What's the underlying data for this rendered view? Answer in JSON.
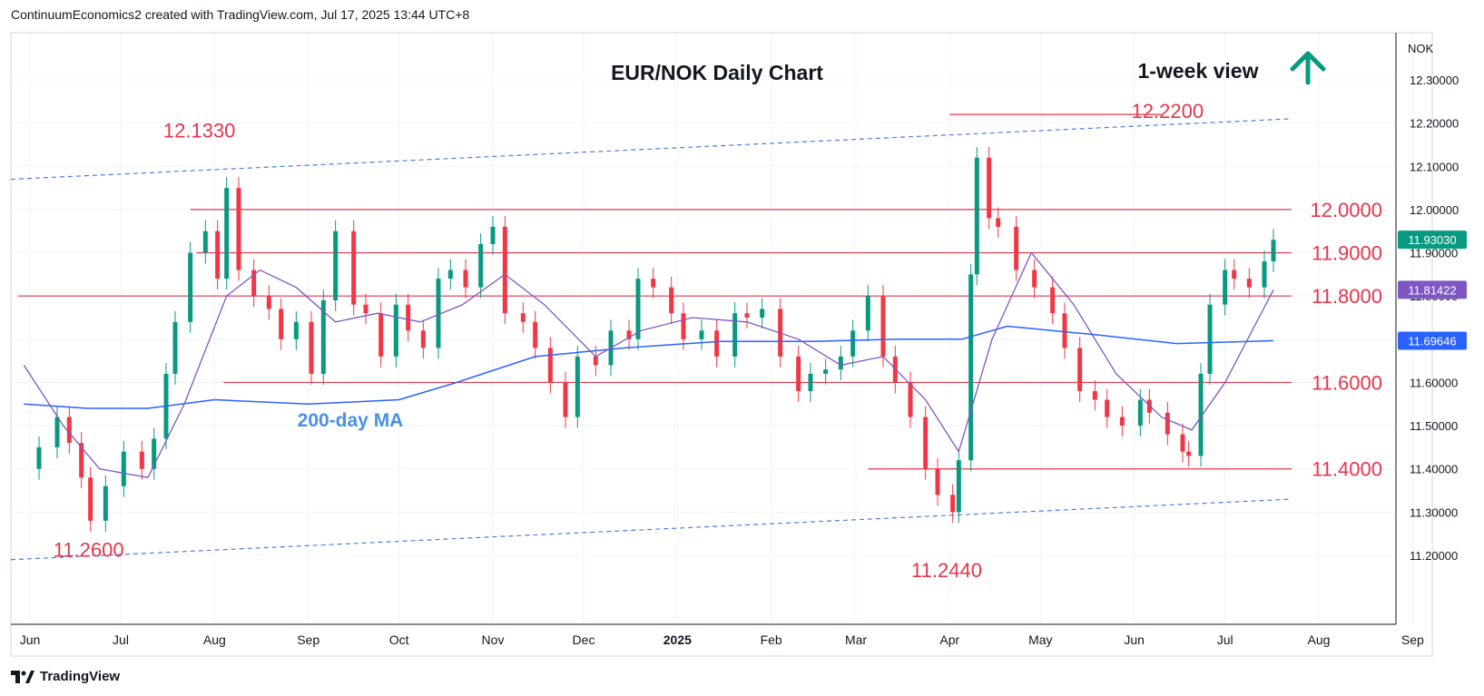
{
  "header": {
    "attribution": "ContinuumEconomics2 created with TradingView.com, Jul 17, 2025 13:44 UTC+8"
  },
  "footer": {
    "brand": "TradingView"
  },
  "colors": {
    "resistance": "#e5364b",
    "channel": "#4a7fe0",
    "ma200": "#2962ff",
    "ma_short": "#7e57c2",
    "up_candle": "#089981",
    "down_candle": "#f23645",
    "arrow": "#089981"
  },
  "chart_data": {
    "type": "candlestick",
    "title": "EUR/NOK Daily Chart",
    "currency": "NOK",
    "view": "1-week view",
    "view_direction": "up",
    "ylim": [
      11.11,
      12.38
    ],
    "y_ticks": [
      "12.30000",
      "12.20000",
      "12.10000",
      "12.00000",
      "11.90000",
      "11.80000",
      "11.70000",
      "11.60000",
      "11.50000",
      "11.40000",
      "11.30000",
      "11.20000"
    ],
    "x_ticks": [
      "Jun",
      "Jul",
      "Aug",
      "Sep",
      "Oct",
      "Nov",
      "Dec",
      "2025",
      "Feb",
      "Mar",
      "Apr",
      "May",
      "Jun",
      "Jul",
      "Aug",
      "Sep"
    ],
    "price_badges": [
      {
        "label": "11.93030",
        "value": 11.9303,
        "color": "#089981"
      },
      {
        "label": "11.81422",
        "value": 11.81422,
        "color": "#7e57c2"
      },
      {
        "label": "11.69646",
        "value": 11.69646,
        "color": "#2962ff"
      }
    ],
    "horizontal_levels": [
      {
        "label": "12.0000",
        "value": 12.0
      },
      {
        "label": "11.9000",
        "value": 11.9
      },
      {
        "label": "11.8000",
        "value": 11.8
      },
      {
        "label": "11.6000",
        "value": 11.6
      },
      {
        "label": "11.4000",
        "value": 11.4
      }
    ],
    "peak_annotations": [
      {
        "label": "12.1330",
        "value": 12.133,
        "date": "2024-08-05"
      },
      {
        "label": "12.2200",
        "value": 12.22,
        "date": "2025-04-10"
      },
      {
        "label": "11.2600",
        "value": 11.26,
        "date": "2024-06-21"
      },
      {
        "label": "11.2440",
        "value": 11.244,
        "date": "2025-04-03"
      }
    ],
    "ma_label": "200-day MA",
    "close_series": [
      [
        "2024-05-30",
        11.4
      ],
      [
        "2024-06-04",
        11.45
      ],
      [
        "2024-06-10",
        11.52
      ],
      [
        "2024-06-14",
        11.46
      ],
      [
        "2024-06-18",
        11.38
      ],
      [
        "2024-06-21",
        11.28
      ],
      [
        "2024-06-26",
        11.36
      ],
      [
        "2024-07-02",
        11.44
      ],
      [
        "2024-07-08",
        11.4
      ],
      [
        "2024-07-12",
        11.47
      ],
      [
        "2024-07-16",
        11.62
      ],
      [
        "2024-07-19",
        11.74
      ],
      [
        "2024-07-24",
        11.9
      ],
      [
        "2024-07-29",
        11.95
      ],
      [
        "2024-08-02",
        11.84
      ],
      [
        "2024-08-05",
        12.05
      ],
      [
        "2024-08-09",
        11.86
      ],
      [
        "2024-08-14",
        11.8
      ],
      [
        "2024-08-19",
        11.77
      ],
      [
        "2024-08-23",
        11.7
      ],
      [
        "2024-08-28",
        11.74
      ],
      [
        "2024-09-02",
        11.62
      ],
      [
        "2024-09-06",
        11.79
      ],
      [
        "2024-09-10",
        11.95
      ],
      [
        "2024-09-16",
        11.78
      ],
      [
        "2024-09-20",
        11.76
      ],
      [
        "2024-09-25",
        11.66
      ],
      [
        "2024-09-30",
        11.78
      ],
      [
        "2024-10-04",
        11.72
      ],
      [
        "2024-10-09",
        11.68
      ],
      [
        "2024-10-14",
        11.84
      ],
      [
        "2024-10-18",
        11.86
      ],
      [
        "2024-10-23",
        11.82
      ],
      [
        "2024-10-28",
        11.92
      ],
      [
        "2024-11-01",
        11.96
      ],
      [
        "2024-11-05",
        11.76
      ],
      [
        "2024-11-11",
        11.74
      ],
      [
        "2024-11-15",
        11.68
      ],
      [
        "2024-11-20",
        11.6
      ],
      [
        "2024-11-25",
        11.52
      ],
      [
        "2024-11-29",
        11.66
      ],
      [
        "2024-12-05",
        11.64
      ],
      [
        "2024-12-10",
        11.72
      ],
      [
        "2024-12-16",
        11.7
      ],
      [
        "2024-12-19",
        11.84
      ],
      [
        "2024-12-24",
        11.82
      ],
      [
        "2024-12-30",
        11.76
      ],
      [
        "2025-01-03",
        11.7
      ],
      [
        "2025-01-09",
        11.72
      ],
      [
        "2025-01-14",
        11.66
      ],
      [
        "2025-01-20",
        11.76
      ],
      [
        "2025-01-24",
        11.75
      ],
      [
        "2025-01-29",
        11.77
      ],
      [
        "2025-02-04",
        11.66
      ],
      [
        "2025-02-10",
        11.58
      ],
      [
        "2025-02-14",
        11.62
      ],
      [
        "2025-02-19",
        11.63
      ],
      [
        "2025-02-24",
        11.66
      ],
      [
        "2025-02-28",
        11.72
      ],
      [
        "2025-03-05",
        11.8
      ],
      [
        "2025-03-10",
        11.66
      ],
      [
        "2025-03-14",
        11.6
      ],
      [
        "2025-03-19",
        11.52
      ],
      [
        "2025-03-24",
        11.4
      ],
      [
        "2025-03-28",
        11.34
      ],
      [
        "2025-04-02",
        11.3
      ],
      [
        "2025-04-04",
        11.42
      ],
      [
        "2025-04-08",
        11.85
      ],
      [
        "2025-04-10",
        12.12
      ],
      [
        "2025-04-14",
        11.98
      ],
      [
        "2025-04-17",
        11.96
      ],
      [
        "2025-04-23",
        11.86
      ],
      [
        "2025-04-29",
        11.82
      ],
      [
        "2025-05-05",
        11.76
      ],
      [
        "2025-05-09",
        11.68
      ],
      [
        "2025-05-14",
        11.58
      ],
      [
        "2025-05-19",
        11.56
      ],
      [
        "2025-05-23",
        11.52
      ],
      [
        "2025-05-28",
        11.5
      ],
      [
        "2025-06-03",
        11.56
      ],
      [
        "2025-06-06",
        11.53
      ],
      [
        "2025-06-12",
        11.48
      ],
      [
        "2025-06-17",
        11.44
      ],
      [
        "2025-06-19",
        11.43
      ],
      [
        "2025-06-23",
        11.62
      ],
      [
        "2025-06-26",
        11.78
      ],
      [
        "2025-07-01",
        11.86
      ],
      [
        "2025-07-04",
        11.84
      ],
      [
        "2025-07-09",
        11.82
      ],
      [
        "2025-07-14",
        11.88
      ],
      [
        "2025-07-17",
        11.93
      ]
    ],
    "ma200_series": [
      [
        "2024-05-30",
        11.55
      ],
      [
        "2024-06-20",
        11.54
      ],
      [
        "2024-07-10",
        11.54
      ],
      [
        "2024-08-01",
        11.56
      ],
      [
        "2024-09-01",
        11.55
      ],
      [
        "2024-10-01",
        11.56
      ],
      [
        "2024-10-20",
        11.6
      ],
      [
        "2024-11-15",
        11.66
      ],
      [
        "2024-12-15",
        11.68
      ],
      [
        "2025-01-15",
        11.695
      ],
      [
        "2025-02-15",
        11.695
      ],
      [
        "2025-03-15",
        11.7
      ],
      [
        "2025-04-05",
        11.7
      ],
      [
        "2025-04-20",
        11.73
      ],
      [
        "2025-05-20",
        11.71
      ],
      [
        "2025-06-15",
        11.69
      ],
      [
        "2025-07-17",
        11.69646
      ]
    ],
    "ma_short_series": [
      [
        "2024-05-30",
        11.64
      ],
      [
        "2024-06-12",
        11.5
      ],
      [
        "2024-06-24",
        11.4
      ],
      [
        "2024-07-10",
        11.38
      ],
      [
        "2024-07-22",
        11.55
      ],
      [
        "2024-08-05",
        11.8
      ],
      [
        "2024-08-16",
        11.86
      ],
      [
        "2024-08-28",
        11.82
      ],
      [
        "2024-09-10",
        11.74
      ],
      [
        "2024-09-24",
        11.76
      ],
      [
        "2024-10-08",
        11.74
      ],
      [
        "2024-10-22",
        11.78
      ],
      [
        "2024-11-05",
        11.85
      ],
      [
        "2024-11-18",
        11.78
      ],
      [
        "2024-12-05",
        11.66
      ],
      [
        "2024-12-20",
        11.72
      ],
      [
        "2025-01-06",
        11.75
      ],
      [
        "2025-01-24",
        11.74
      ],
      [
        "2025-02-10",
        11.7
      ],
      [
        "2025-02-24",
        11.64
      ],
      [
        "2025-03-10",
        11.66
      ],
      [
        "2025-03-24",
        11.56
      ],
      [
        "2025-04-04",
        11.44
      ],
      [
        "2025-04-15",
        11.7
      ],
      [
        "2025-04-28",
        11.9
      ],
      [
        "2025-05-12",
        11.78
      ],
      [
        "2025-05-26",
        11.62
      ],
      [
        "2025-06-10",
        11.52
      ],
      [
        "2025-06-20",
        11.49
      ],
      [
        "2025-07-01",
        11.6
      ],
      [
        "2025-07-17",
        11.81422
      ]
    ]
  }
}
